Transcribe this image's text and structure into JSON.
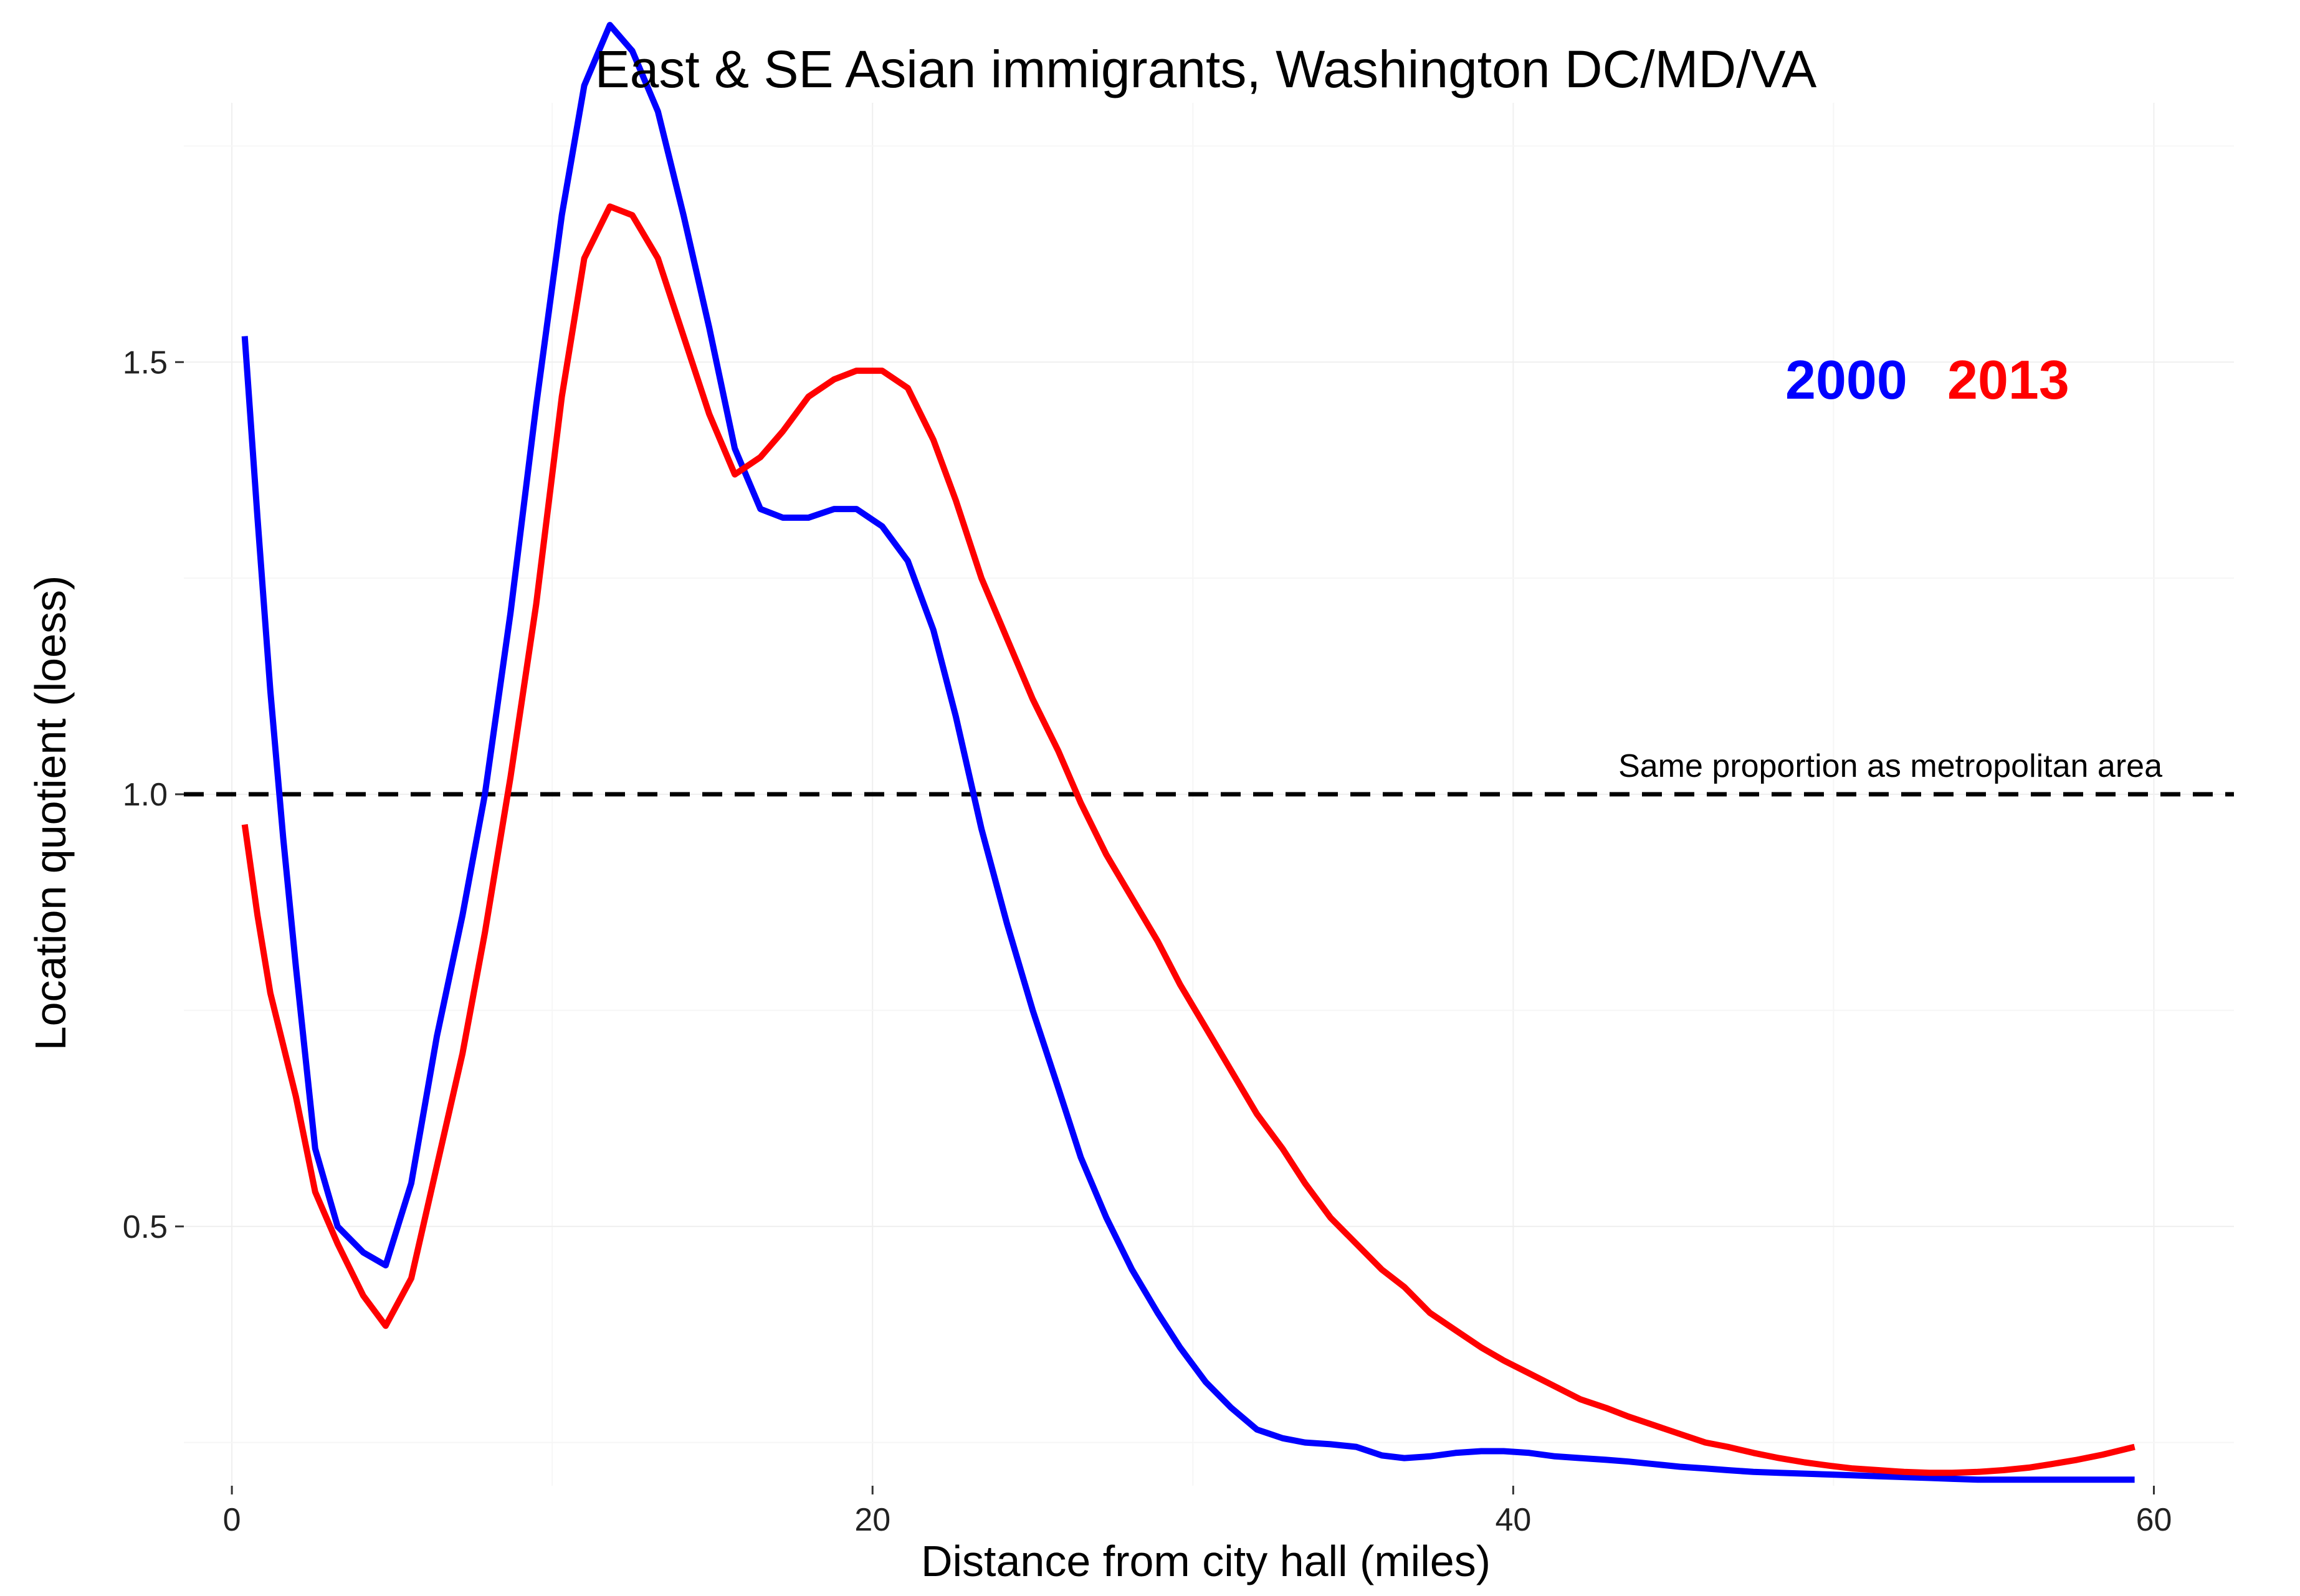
{
  "chart_data": {
    "type": "line",
    "title": "East & SE Asian immigrants, Washington DC/MD/VA",
    "xlabel": "Distance from city hall (miles)",
    "ylabel": "Location quotient (loess)",
    "xlim": [
      -1.5,
      62.5
    ],
    "ylim": [
      0.2,
      1.8
    ],
    "x_ticks": [
      0,
      20,
      40,
      60
    ],
    "x_tick_labels": [
      "0",
      "20",
      "40",
      "60"
    ],
    "y_ticks": [
      0.5,
      1.0,
      1.5
    ],
    "y_tick_labels": [
      "0.5",
      "1.0",
      "1.5"
    ],
    "grid": true,
    "legend_position": "top-right",
    "reference_line": {
      "y": 1.0,
      "style": "dashed",
      "color": "#000000",
      "label": "Same proportion as metropolitan area"
    },
    "series": [
      {
        "name": "2000",
        "color": "#0000ff",
        "points": [
          [
            0.4,
            1.53
          ],
          [
            0.8,
            1.32
          ],
          [
            1.2,
            1.12
          ],
          [
            1.6,
            0.95
          ],
          [
            2.0,
            0.8
          ],
          [
            2.6,
            0.59
          ],
          [
            3.3,
            0.5
          ],
          [
            4.1,
            0.47
          ],
          [
            4.8,
            0.455
          ],
          [
            5.6,
            0.55
          ],
          [
            6.4,
            0.72
          ],
          [
            7.2,
            0.86
          ],
          [
            7.9,
            1.0
          ],
          [
            8.7,
            1.21
          ],
          [
            9.5,
            1.45
          ],
          [
            10.3,
            1.67
          ],
          [
            11.0,
            1.82
          ],
          [
            11.8,
            1.89
          ],
          [
            12.5,
            1.86
          ],
          [
            13.3,
            1.79
          ],
          [
            14.1,
            1.67
          ],
          [
            14.9,
            1.54
          ],
          [
            15.7,
            1.4
          ],
          [
            16.5,
            1.33
          ],
          [
            17.2,
            1.32
          ],
          [
            18.0,
            1.32
          ],
          [
            18.8,
            1.33
          ],
          [
            19.5,
            1.33
          ],
          [
            20.3,
            1.31
          ],
          [
            21.1,
            1.27
          ],
          [
            21.9,
            1.19
          ],
          [
            22.6,
            1.09
          ],
          [
            23.4,
            0.96
          ],
          [
            24.2,
            0.85
          ],
          [
            25.0,
            0.75
          ],
          [
            25.8,
            0.66
          ],
          [
            26.5,
            0.58
          ],
          [
            27.3,
            0.51
          ],
          [
            28.1,
            0.45
          ],
          [
            28.9,
            0.4
          ],
          [
            29.6,
            0.36
          ],
          [
            30.4,
            0.32
          ],
          [
            31.2,
            0.29
          ],
          [
            32.0,
            0.265
          ],
          [
            32.8,
            0.255
          ],
          [
            33.5,
            0.25
          ],
          [
            34.3,
            0.248
          ],
          [
            35.1,
            0.245
          ],
          [
            35.9,
            0.235
          ],
          [
            36.6,
            0.232
          ],
          [
            37.4,
            0.234
          ],
          [
            38.2,
            0.238
          ],
          [
            39.0,
            0.24
          ],
          [
            39.7,
            0.24
          ],
          [
            40.5,
            0.238
          ],
          [
            41.3,
            0.234
          ],
          [
            42.1,
            0.232
          ],
          [
            42.9,
            0.23
          ],
          [
            43.6,
            0.228
          ],
          [
            44.4,
            0.225
          ],
          [
            45.2,
            0.222
          ],
          [
            46.0,
            0.22
          ],
          [
            46.7,
            0.218
          ],
          [
            47.5,
            0.216
          ],
          [
            48.3,
            0.215
          ],
          [
            49.1,
            0.214
          ],
          [
            49.9,
            0.213
          ],
          [
            50.6,
            0.212
          ],
          [
            51.4,
            0.211
          ],
          [
            52.2,
            0.21
          ],
          [
            53.0,
            0.209
          ],
          [
            53.7,
            0.208
          ],
          [
            54.5,
            0.207
          ],
          [
            55.3,
            0.207
          ],
          [
            56.1,
            0.207
          ],
          [
            56.8,
            0.207
          ],
          [
            57.6,
            0.207
          ],
          [
            58.4,
            0.207
          ],
          [
            59.4,
            0.207
          ]
        ]
      },
      {
        "name": "2013",
        "color": "#ff0000",
        "points": [
          [
            0.4,
            0.965
          ],
          [
            0.8,
            0.86
          ],
          [
            1.2,
            0.77
          ],
          [
            1.6,
            0.71
          ],
          [
            2.0,
            0.65
          ],
          [
            2.6,
            0.54
          ],
          [
            3.3,
            0.48
          ],
          [
            4.1,
            0.42
          ],
          [
            4.8,
            0.385
          ],
          [
            5.6,
            0.44
          ],
          [
            6.4,
            0.57
          ],
          [
            7.2,
            0.7
          ],
          [
            7.9,
            0.84
          ],
          [
            8.7,
            1.02
          ],
          [
            9.5,
            1.22
          ],
          [
            10.3,
            1.46
          ],
          [
            11.0,
            1.62
          ],
          [
            11.8,
            1.68
          ],
          [
            12.5,
            1.67
          ],
          [
            13.3,
            1.62
          ],
          [
            14.1,
            1.53
          ],
          [
            14.9,
            1.44
          ],
          [
            15.7,
            1.37
          ],
          [
            16.5,
            1.39
          ],
          [
            17.2,
            1.42
          ],
          [
            18.0,
            1.46
          ],
          [
            18.8,
            1.48
          ],
          [
            19.5,
            1.49
          ],
          [
            20.3,
            1.49
          ],
          [
            21.1,
            1.47
          ],
          [
            21.9,
            1.41
          ],
          [
            22.6,
            1.34
          ],
          [
            23.4,
            1.25
          ],
          [
            24.2,
            1.18
          ],
          [
            25.0,
            1.11
          ],
          [
            25.8,
            1.05
          ],
          [
            26.5,
            0.99
          ],
          [
            27.3,
            0.93
          ],
          [
            28.1,
            0.88
          ],
          [
            28.9,
            0.83
          ],
          [
            29.6,
            0.78
          ],
          [
            30.4,
            0.73
          ],
          [
            31.2,
            0.68
          ],
          [
            32.0,
            0.63
          ],
          [
            32.8,
            0.59
          ],
          [
            33.5,
            0.55
          ],
          [
            34.3,
            0.51
          ],
          [
            35.1,
            0.48
          ],
          [
            35.9,
            0.45
          ],
          [
            36.6,
            0.43
          ],
          [
            37.4,
            0.4
          ],
          [
            38.2,
            0.38
          ],
          [
            39.0,
            0.36
          ],
          [
            39.7,
            0.345
          ],
          [
            40.5,
            0.33
          ],
          [
            41.3,
            0.315
          ],
          [
            42.1,
            0.3
          ],
          [
            42.9,
            0.29
          ],
          [
            43.6,
            0.28
          ],
          [
            44.4,
            0.27
          ],
          [
            45.2,
            0.26
          ],
          [
            46.0,
            0.25
          ],
          [
            46.7,
            0.245
          ],
          [
            47.5,
            0.238
          ],
          [
            48.3,
            0.232
          ],
          [
            49.1,
            0.227
          ],
          [
            49.9,
            0.223
          ],
          [
            50.6,
            0.22
          ],
          [
            51.4,
            0.218
          ],
          [
            52.2,
            0.216
          ],
          [
            53.0,
            0.215
          ],
          [
            53.7,
            0.215
          ],
          [
            54.5,
            0.216
          ],
          [
            55.3,
            0.218
          ],
          [
            56.1,
            0.221
          ],
          [
            56.8,
            0.225
          ],
          [
            57.6,
            0.23
          ],
          [
            58.4,
            0.236
          ],
          [
            59.4,
            0.245
          ]
        ]
      }
    ]
  }
}
